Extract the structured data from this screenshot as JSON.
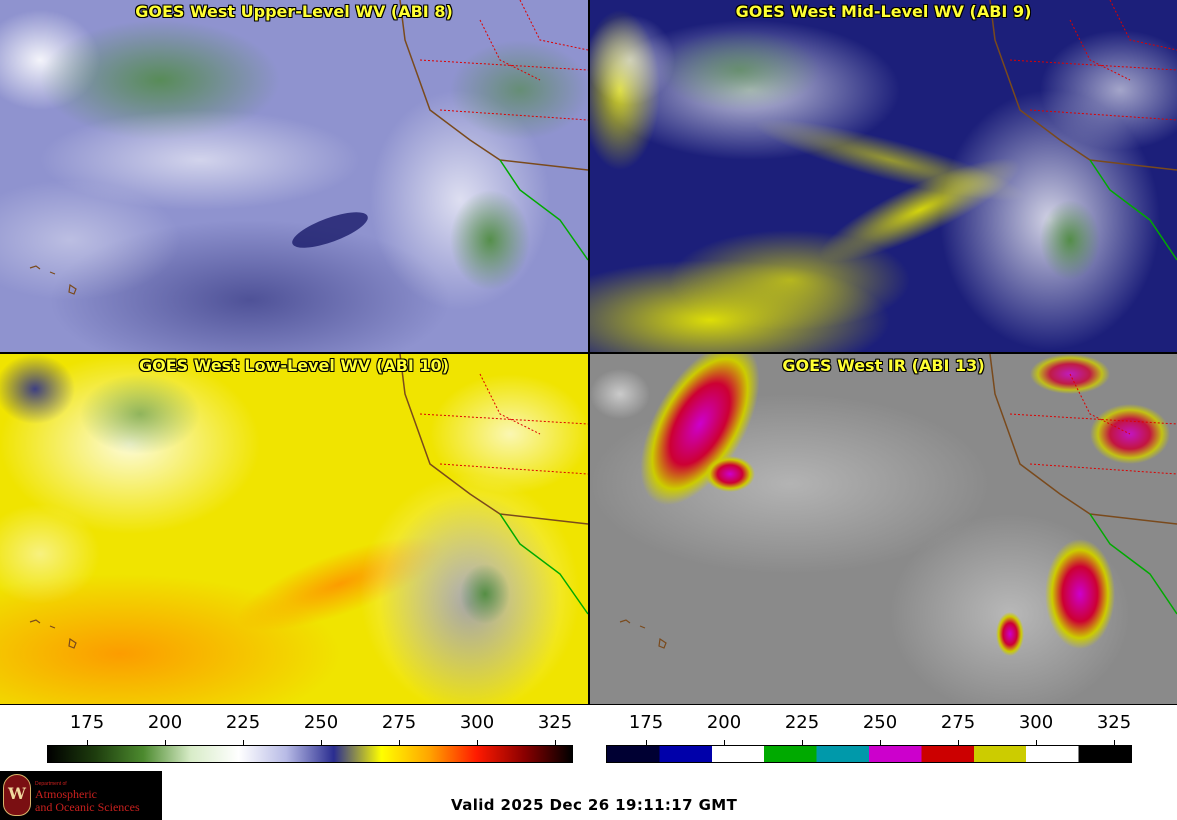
{
  "panels": {
    "upper": {
      "title": "GOES West Upper-Level WV (ABI 8)"
    },
    "mid": {
      "title": "GOES West Mid-Level WV (ABI 9)"
    },
    "low": {
      "title": "GOES West Low-Level WV (ABI 10)"
    },
    "ir": {
      "title": "GOES West IR (ABI 13)"
    }
  },
  "wv_colorbar": {
    "ticks": [
      "175",
      "200",
      "225",
      "250",
      "275",
      "300",
      "325"
    ],
    "colors": [
      "#000000",
      "#1e3d0e",
      "#4c8a2e",
      "#d8ecc8",
      "#ffffff",
      "#b8bbe6",
      "#2a2d90",
      "#ffff00",
      "#ffa500",
      "#ff1a00",
      "#8a0000",
      "#000000"
    ]
  },
  "ir_colorbar": {
    "ticks": [
      "175",
      "200",
      "225",
      "250",
      "275",
      "300",
      "325"
    ],
    "colors": [
      "#000033",
      "#0000aa",
      "#ffffff",
      "#00aa00",
      "#0099aa",
      "#cc00cc",
      "#cc0000",
      "#cccc00",
      "#ffffff",
      "#000000"
    ]
  },
  "logo": {
    "dept_small": "Department of",
    "line1": "Atmospheric",
    "line2": "and Oceanic Sciences",
    "seal": "W"
  },
  "valid_time": "Valid 2025 Dec 26 19:11:17 GMT"
}
